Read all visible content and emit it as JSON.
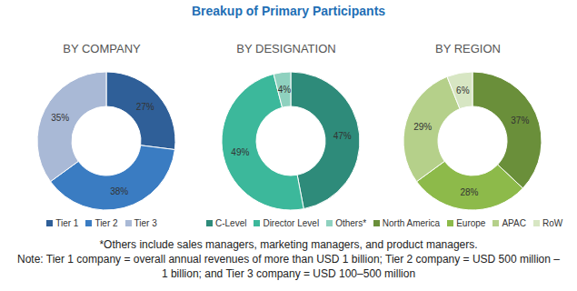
{
  "title": "Breakup of Primary Participants",
  "chart_data": [
    {
      "type": "pie",
      "title": "BY COMPANY",
      "categories": [
        "Tier 1",
        "Tier 2",
        "Tier 3"
      ],
      "values": [
        27,
        38,
        35
      ],
      "value_labels": [
        "27%",
        "38%",
        "35%"
      ],
      "colors": [
        "#2f5f98",
        "#3a7cc2",
        "#a9b9d6"
      ],
      "data_labels": true,
      "legend": "bottom"
    },
    {
      "type": "pie",
      "title": "BY DESIGNATION",
      "categories": [
        "C-Level",
        "Director Level",
        "Others*"
      ],
      "values": [
        47,
        49,
        4
      ],
      "value_labels": [
        "47%",
        "49%",
        "4%"
      ],
      "colors": [
        "#2e8b7a",
        "#3cb89b",
        "#8fd1bf"
      ],
      "data_labels": true,
      "legend": "bottom"
    },
    {
      "type": "pie",
      "title": "BY REGION",
      "categories": [
        "North America",
        "Europe",
        "APAC",
        "RoW"
      ],
      "values": [
        37,
        28,
        29,
        6
      ],
      "value_labels": [
        "37%",
        "28%",
        "29%",
        "6%"
      ],
      "colors": [
        "#6a8f3a",
        "#8dba4a",
        "#b5d08a",
        "#d7e6c3"
      ],
      "data_labels": true,
      "legend": "bottom"
    }
  ],
  "notes": [
    "*Others include sales managers, marketing managers, and product managers.",
    "Note: Tier 1 company = overall annual revenues of more than USD 1 billion; Tier 2 company = USD 500 million – 1 billion; and Tier 3 company = USD 100–500 million"
  ]
}
